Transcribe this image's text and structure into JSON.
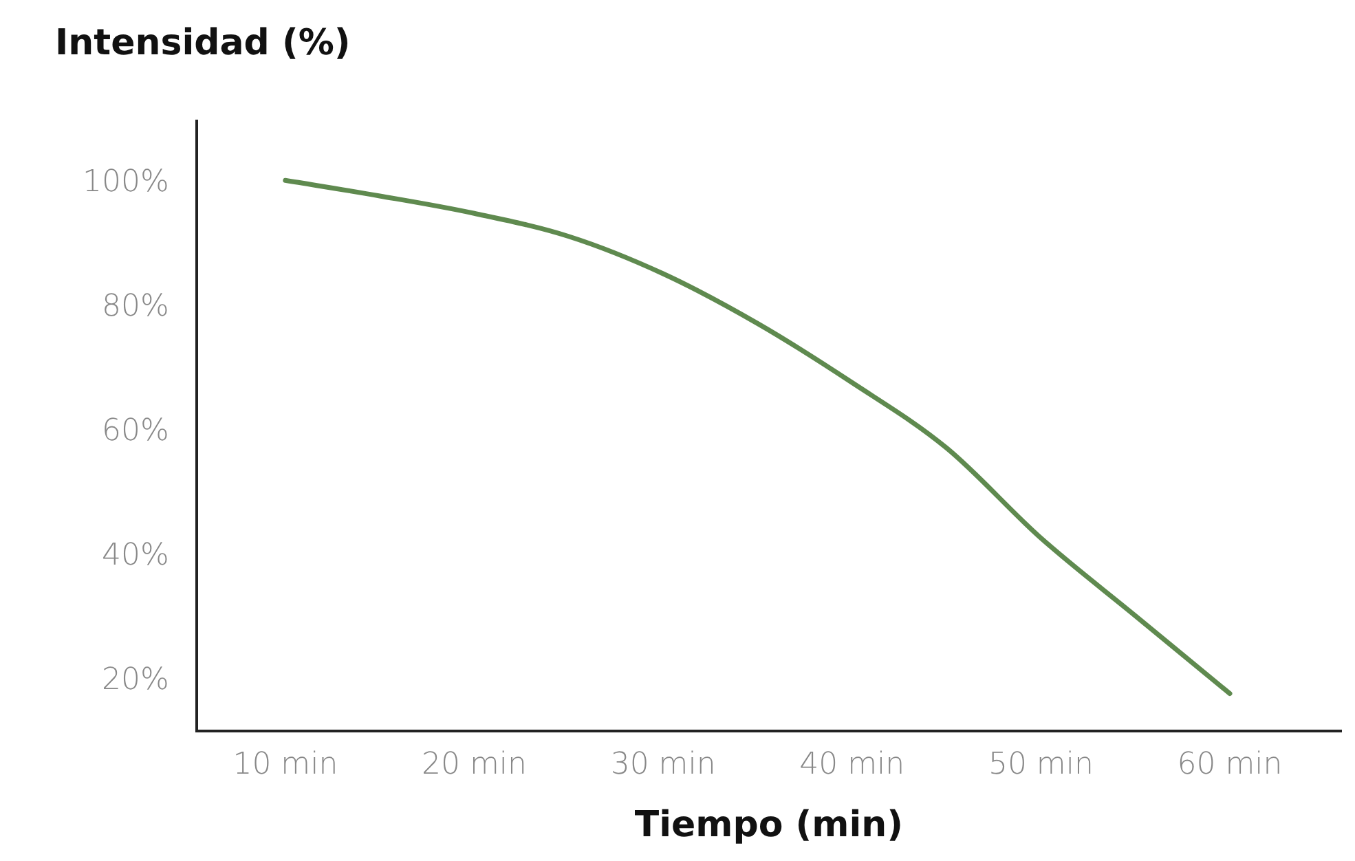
{
  "chart_data": {
    "type": "line",
    "title": "Intensidad (%)",
    "xlabel": "Tiempo (min)",
    "x": [
      10,
      15,
      20,
      25,
      30,
      35,
      40,
      45,
      50,
      55,
      60
    ],
    "series": [
      {
        "color": "#5f8a4f",
        "values": [
          100.5,
          98,
          95.2,
          91.5,
          85.5,
          77.5,
          68,
          57.5,
          43,
          30.5,
          18
        ]
      }
    ],
    "xlim": [
      5.3,
      65.9
    ],
    "ylim": [
      12,
      110
    ],
    "xticks": [
      {
        "value": 10,
        "label": "10 min"
      },
      {
        "value": 20,
        "label": "20 min"
      },
      {
        "value": 30,
        "label": "30 min"
      },
      {
        "value": 40,
        "label": "40 min"
      },
      {
        "value": 50,
        "label": "50 min"
      },
      {
        "value": 60,
        "label": "60 min"
      }
    ],
    "yticks": [
      {
        "value": 20,
        "label": "20%"
      },
      {
        "value": 40,
        "label": "40%"
      },
      {
        "value": 60,
        "label": "60%"
      },
      {
        "value": 80,
        "label": "80%"
      },
      {
        "value": 100,
        "label": "100%"
      }
    ],
    "grid": false,
    "legend": false,
    "marker": "none",
    "line_style": "solid"
  }
}
